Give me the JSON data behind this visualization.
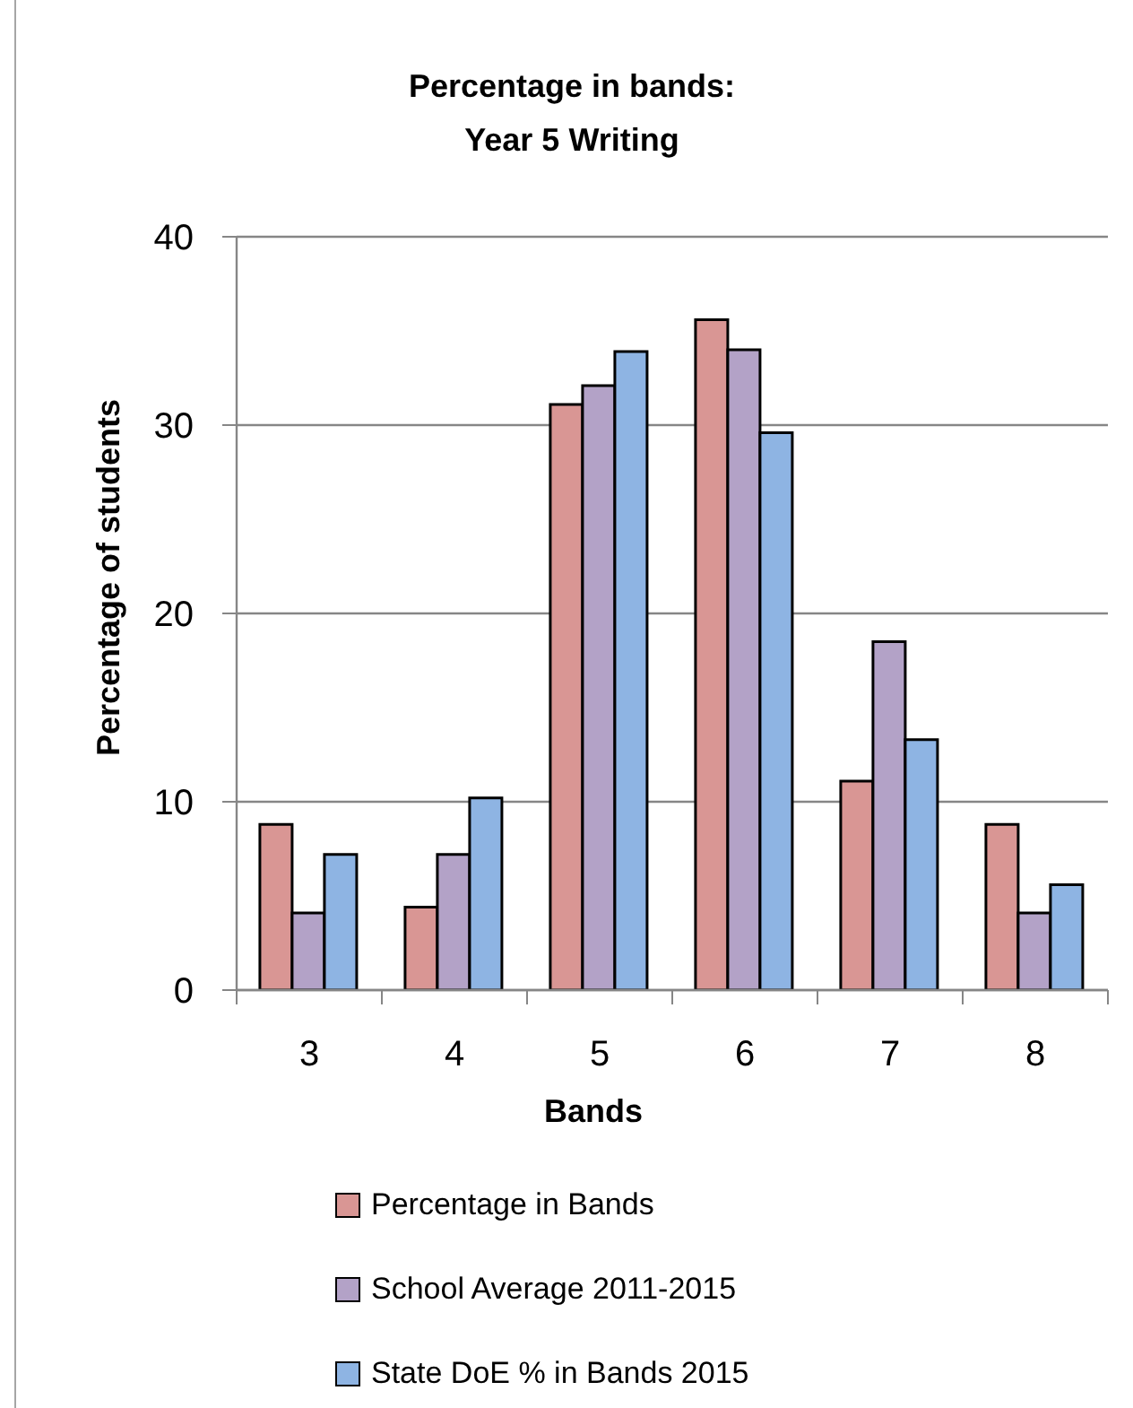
{
  "chart_data": {
    "type": "bar",
    "title": "Percentage in bands:\nYear 5 Writing",
    "xlabel": "Bands",
    "ylabel": "Percentage of students",
    "categories": [
      "3",
      "4",
      "5",
      "6",
      "7",
      "8"
    ],
    "series": [
      {
        "name": "Percentage in Bands",
        "color": "#d99694",
        "values": [
          8.8,
          4.4,
          31.1,
          35.6,
          11.1,
          8.8
        ]
      },
      {
        "name": "School Average 2011-2015",
        "color": "#b3a2c7",
        "values": [
          4.1,
          7.2,
          32.1,
          34.0,
          18.5,
          4.1
        ]
      },
      {
        "name": "State DoE % in Bands 2015",
        "color": "#8eb4e3",
        "values": [
          7.2,
          10.2,
          33.9,
          29.6,
          13.3,
          5.6
        ]
      }
    ],
    "ylim": [
      0,
      40
    ],
    "yticks": [
      0,
      10,
      20,
      30,
      40
    ],
    "grid": "y",
    "legend": "bottom"
  }
}
